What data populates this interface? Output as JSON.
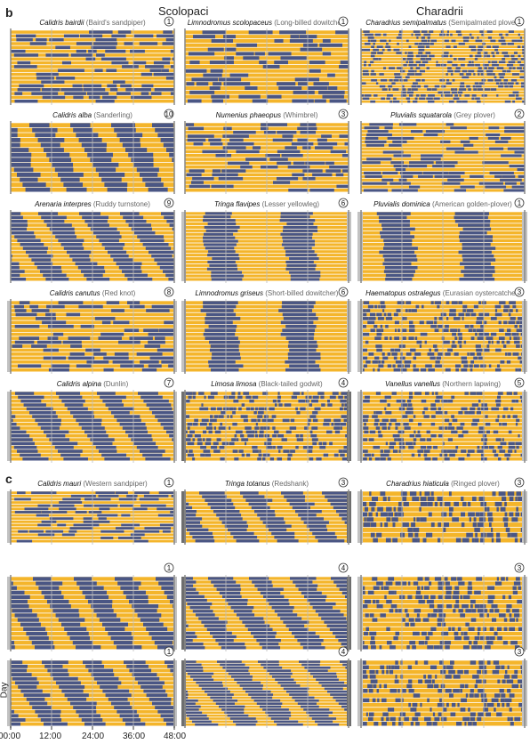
{
  "headers": {
    "left": "Scolopaci",
    "right": "Charadrii"
  },
  "panel_letters": {
    "b": "b",
    "c": "c"
  },
  "axis": {
    "ylabel": "Day",
    "xticks": [
      "00:00",
      "12:00",
      "24:00",
      "36:00",
      "48:00"
    ]
  },
  "colors": {
    "a": "#f4b52b",
    "b": "#4a5684",
    "c": "#c2c2c2",
    "d": "#6e6e6e"
  },
  "chart_data": {
    "type": "heatmap",
    "xlabel": "",
    "ylabel": "Day",
    "x_range_hours": [
      0,
      48
    ],
    "panels": [
      {
        "section": "b",
        "col": 0,
        "row": 0,
        "species": "Calidris bairdii",
        "common": "(Baird's sandpiper)",
        "n": "1",
        "pattern": "random",
        "days": 19,
        "seed": 11
      },
      {
        "section": "b",
        "col": 1,
        "row": 0,
        "species": "Limnodromus scolopaceus",
        "common": "(Long-billed dowitcher)",
        "n": "1",
        "pattern": "random",
        "days": 17,
        "seed": 12
      },
      {
        "section": "b",
        "col": 2,
        "row": 0,
        "species": "Charadrius semipalmatus",
        "common": "(Semipalmated plover)",
        "n": "1",
        "pattern": "fine",
        "days": 24,
        "seed": 13
      },
      {
        "section": "b",
        "col": 0,
        "row": 1,
        "species": "Calidris alba",
        "common": "(Sanderling)",
        "n": "10",
        "pattern": "drift",
        "days": 14,
        "seed": 21
      },
      {
        "section": "b",
        "col": 1,
        "row": 1,
        "species": "Numenius phaeopus",
        "common": "(Whimbrel)",
        "n": "3",
        "pattern": "random",
        "days": 18,
        "seed": 22
      },
      {
        "section": "b",
        "col": 2,
        "row": 1,
        "species": "Pluvialis squatarola",
        "common": "(Grey plover)",
        "n": "2",
        "pattern": "random",
        "days": 20,
        "seed": 23
      },
      {
        "section": "b",
        "col": 0,
        "row": 2,
        "species": "Arenaria interpres",
        "common": "(Ruddy turnstone)",
        "n": "9",
        "pattern": "drift",
        "days": 18,
        "seed": 31
      },
      {
        "section": "b",
        "col": 1,
        "row": 2,
        "species": "Tringa flavipes",
        "common": "(Lesser yellowleg)",
        "n": "6",
        "pattern": "daily",
        "days": 20,
        "seed": 32
      },
      {
        "section": "b",
        "col": 2,
        "row": 2,
        "species": "Pluvialis dominica",
        "common": "(American golden-plover)",
        "n": "1",
        "pattern": "daily",
        "days": 18,
        "seed": 33
      },
      {
        "section": "b",
        "col": 0,
        "row": 3,
        "species": "Calidris canutus",
        "common": "(Red knot)",
        "n": "8",
        "pattern": "random",
        "days": 18,
        "seed": 41
      },
      {
        "section": "b",
        "col": 1,
        "row": 3,
        "species": "Limnodromus griseus",
        "common": "(Short-billed dowitcher)",
        "n": "6",
        "pattern": "daily",
        "days": 18,
        "seed": 42
      },
      {
        "section": "b",
        "col": 2,
        "row": 3,
        "species": "Haematopus ostralegus",
        "common": "(Eurasian oystercatcher)",
        "n": "3",
        "pattern": "fine",
        "days": 18,
        "seed": 43
      },
      {
        "section": "b",
        "col": 0,
        "row": 4,
        "species": "Calidris alpina",
        "common": "(Dunlin)",
        "n": "7",
        "pattern": "drift",
        "days": 18,
        "seed": 51
      },
      {
        "section": "b",
        "col": 1,
        "row": 4,
        "species": "Limosa limosa",
        "common": "(Black-tailed godwit)",
        "n": "4",
        "pattern": "fine",
        "days": 18,
        "seed": 52
      },
      {
        "section": "b",
        "col": 2,
        "row": 4,
        "species": "Vanellus vanellus",
        "common": "(Northern lapwing)",
        "n": "5",
        "pattern": "fine",
        "days": 18,
        "seed": 53
      },
      {
        "section": "c",
        "col": 0,
        "row": 5,
        "species": "Calidris mauri",
        "common": "(Western sandpiper)",
        "n": "1",
        "pattern": "random",
        "days": 16,
        "seed": 61
      },
      {
        "section": "c",
        "col": 1,
        "row": 5,
        "species": "Tringa totanus",
        "common": "(Redshank)",
        "n": "3",
        "pattern": "drift",
        "days": 14,
        "seed": 62
      },
      {
        "section": "c",
        "col": 2,
        "row": 5,
        "species": "Charadrius hiaticula",
        "common": "(Ringed plover)",
        "n": "3",
        "pattern": "fine",
        "days": 10,
        "seed": 63
      },
      {
        "section": "c",
        "col": 0,
        "row": 6,
        "species": "",
        "common": "",
        "n": "1",
        "pattern": "drift",
        "days": 16,
        "seed": 71
      },
      {
        "section": "c",
        "col": 1,
        "row": 6,
        "species": "",
        "common": "",
        "n": "4",
        "pattern": "drift",
        "days": 20,
        "seed": 72
      },
      {
        "section": "c",
        "col": 2,
        "row": 6,
        "species": "",
        "common": "",
        "n": "3",
        "pattern": "fine",
        "days": 16,
        "seed": 73
      },
      {
        "section": "c",
        "col": 0,
        "row": 7,
        "species": "",
        "common": "",
        "n": "1",
        "pattern": "drift",
        "days": 16,
        "seed": 81
      },
      {
        "section": "c",
        "col": 1,
        "row": 7,
        "species": "",
        "common": "",
        "n": "4",
        "pattern": "drift",
        "days": 22,
        "seed": 82
      },
      {
        "section": "c",
        "col": 2,
        "row": 7,
        "species": "",
        "common": "",
        "n": "3",
        "pattern": "fine",
        "days": 14,
        "seed": 83
      }
    ]
  }
}
